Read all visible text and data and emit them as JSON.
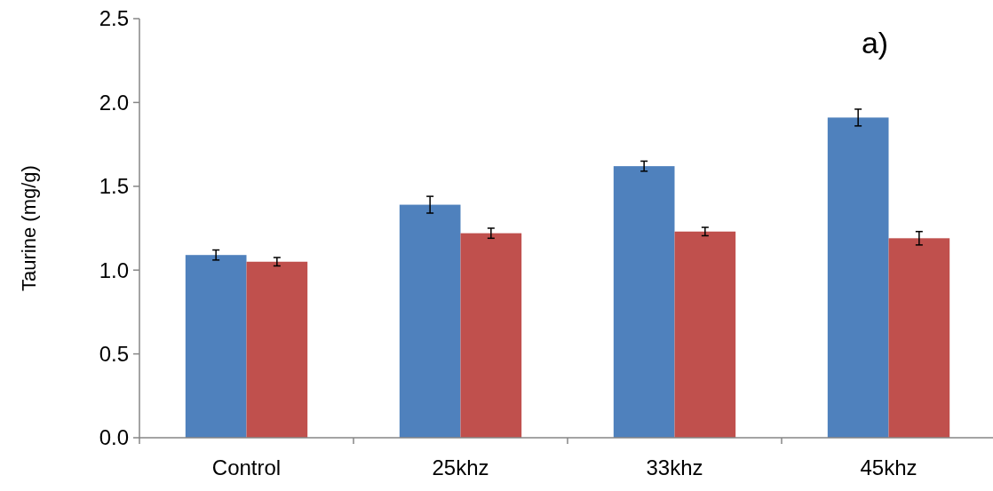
{
  "chart_data": {
    "type": "bar",
    "ylabel": "Taurine (mg/g)",
    "categories": [
      "Control",
      "25khz",
      "33khz",
      "45khz"
    ],
    "series": [
      {
        "color": "#4f81bd",
        "values": [
          1.09,
          1.39,
          1.62,
          1.91
        ],
        "errors": [
          0.03,
          0.05,
          0.03,
          0.05
        ]
      },
      {
        "color": "#c0504d",
        "values": [
          1.05,
          1.22,
          1.23,
          1.19
        ],
        "errors": [
          0.025,
          0.03,
          0.025,
          0.04
        ]
      }
    ],
    "ylim": [
      0,
      2.5
    ],
    "yticks": [
      {
        "value": 0,
        "label": "0.0"
      },
      {
        "value": 0.5,
        "label": "0.5"
      },
      {
        "value": 1,
        "label": "1.0"
      },
      {
        "value": 1.5,
        "label": "1.5"
      },
      {
        "value": 2,
        "label": "2.0"
      },
      {
        "value": 2.5,
        "label": "2.5"
      }
    ],
    "annotations": [
      "a)"
    ]
  }
}
